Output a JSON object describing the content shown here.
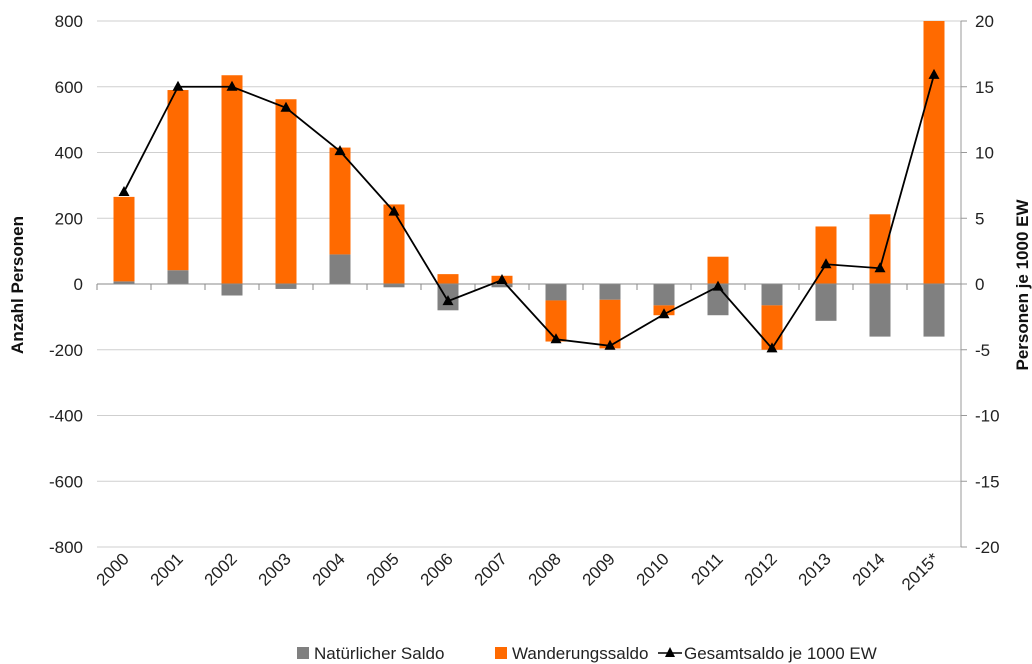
{
  "chart_data": {
    "type": "bar",
    "stacked": true,
    "categories": [
      "2000",
      "2001",
      "2002",
      "2003",
      "2004",
      "2005",
      "2006",
      "2007",
      "2008",
      "2009",
      "2010",
      "2011",
      "2012",
      "2013",
      "2014",
      "2015*"
    ],
    "series": [
      {
        "name": "Natürlicher Saldo",
        "type": "bar",
        "axis": "left",
        "color": "#808080",
        "values": [
          8,
          42,
          -35,
          -15,
          90,
          -10,
          -80,
          -10,
          -50,
          -48,
          -65,
          -95,
          -65,
          -112,
          -160,
          -160
        ]
      },
      {
        "name": "Wanderungssaldo",
        "type": "bar",
        "axis": "left",
        "color": "#ff6a00",
        "values": [
          257,
          548,
          635,
          562,
          325,
          242,
          30,
          25,
          -125,
          -148,
          -30,
          83,
          -135,
          175,
          212,
          800
        ]
      },
      {
        "name": "Gesamtsaldo je 1000 EW",
        "type": "line",
        "axis": "right",
        "color": "#000000",
        "marker": "triangle",
        "values": [
          7.0,
          15.0,
          15.0,
          13.4,
          10.1,
          5.5,
          -1.3,
          0.3,
          -4.2,
          -4.7,
          -2.3,
          -0.2,
          -4.9,
          1.5,
          1.2,
          15.9
        ]
      }
    ],
    "ylabel": "Anzahl Personen",
    "y2label": "Personen je 1000 EW",
    "ylim": [
      -800,
      800
    ],
    "y2lim": [
      -20,
      20
    ],
    "yticks": [
      "800",
      "600",
      "400",
      "200",
      "0",
      "-200",
      "-400",
      "-600",
      "-800"
    ],
    "y2ticks": [
      "20",
      "15",
      "10",
      "5",
      "0",
      "-5",
      "-10",
      "-15",
      "-20"
    ],
    "grid": true,
    "legend_position": "bottom"
  }
}
